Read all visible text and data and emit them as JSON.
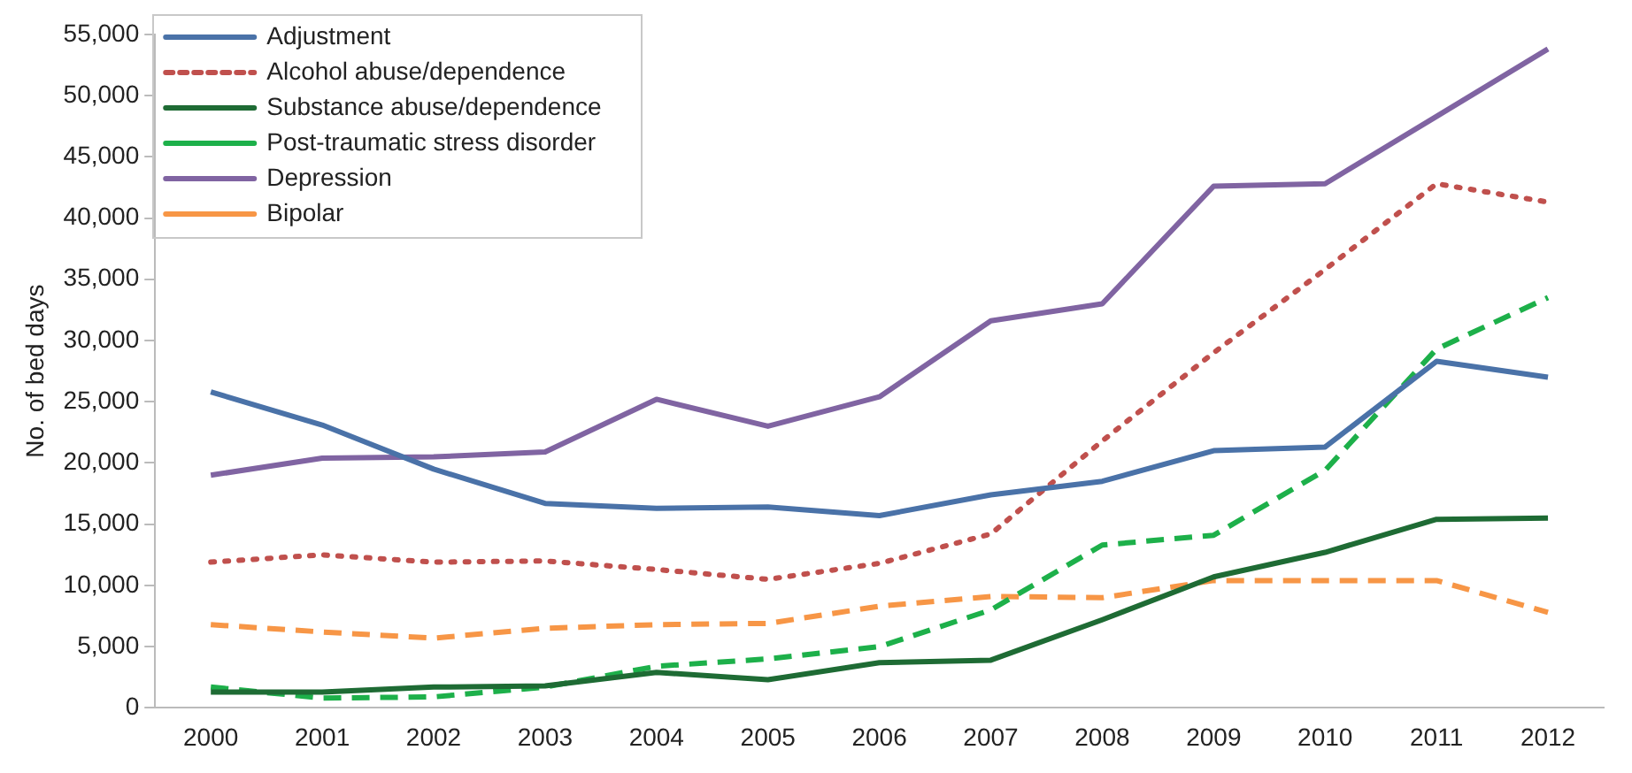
{
  "chart_data": {
    "type": "line",
    "ylabel": "No. of bed days",
    "categories": [
      "2000",
      "2001",
      "2002",
      "2003",
      "2004",
      "2005",
      "2006",
      "2007",
      "2008",
      "2009",
      "2010",
      "2011",
      "2012"
    ],
    "ylim": [
      0,
      55000
    ],
    "yticks": [
      0,
      {
        "value": 5000,
        "label": "5,000"
      },
      {
        "value": 10000,
        "label": "10,000"
      },
      {
        "value": 15000,
        "label": "15,000"
      },
      {
        "value": 20000,
        "label": "20,000"
      },
      {
        "value": 25000,
        "label": "25,000"
      },
      {
        "value": 30000,
        "label": "30,000"
      },
      {
        "value": 35000,
        "label": "35,000"
      },
      {
        "value": 40000,
        "label": "40,000"
      },
      {
        "value": 45000,
        "label": "45,000"
      },
      {
        "value": 50000,
        "label": "50,000"
      },
      {
        "value": 55000,
        "label": "55,000"
      }
    ],
    "grid": false,
    "legend": "top left",
    "marker": "none",
    "series": [
      {
        "name": "Adjustment",
        "color": "#4a72a8",
        "line_style": "solid",
        "values": [
          25800,
          23100,
          19500,
          16700,
          16300,
          16400,
          15700,
          17400,
          18500,
          21000,
          21300,
          28300,
          27000
        ]
      },
      {
        "name": "Alcohol abuse/dependence",
        "color": "#c0504d",
        "line_style": "dotted",
        "values": [
          11900,
          12500,
          11900,
          12000,
          11300,
          10500,
          11800,
          14200,
          21800,
          29000,
          35800,
          42800,
          41300
        ]
      },
      {
        "name": "Substance abuse/dependence",
        "color": "#1e6b34",
        "line_style": "solid",
        "values": [
          1300,
          1300,
          1700,
          1800,
          2900,
          2300,
          3700,
          3900,
          7200,
          10700,
          12700,
          15400,
          15500
        ]
      },
      {
        "name": "Post-traumatic stress disorder",
        "color": "#1db04a",
        "line_style": "dashed",
        "values": [
          1700,
          800,
          900,
          1700,
          3400,
          4000,
          5000,
          8000,
          13300,
          14100,
          19400,
          29300,
          33500
        ]
      },
      {
        "name": "Depression",
        "color": "#8064a2",
        "line_style": "solid",
        "values": [
          19000,
          20400,
          20500,
          20900,
          25200,
          23000,
          25400,
          31600,
          33000,
          42600,
          42800,
          48300,
          53800
        ]
      },
      {
        "name": "Bipolar",
        "color": "#f79646",
        "line_style": "dashed",
        "values": [
          6800,
          6200,
          5700,
          6500,
          6800,
          6900,
          8300,
          9100,
          9000,
          10400,
          10400,
          10400,
          7800
        ]
      }
    ]
  }
}
